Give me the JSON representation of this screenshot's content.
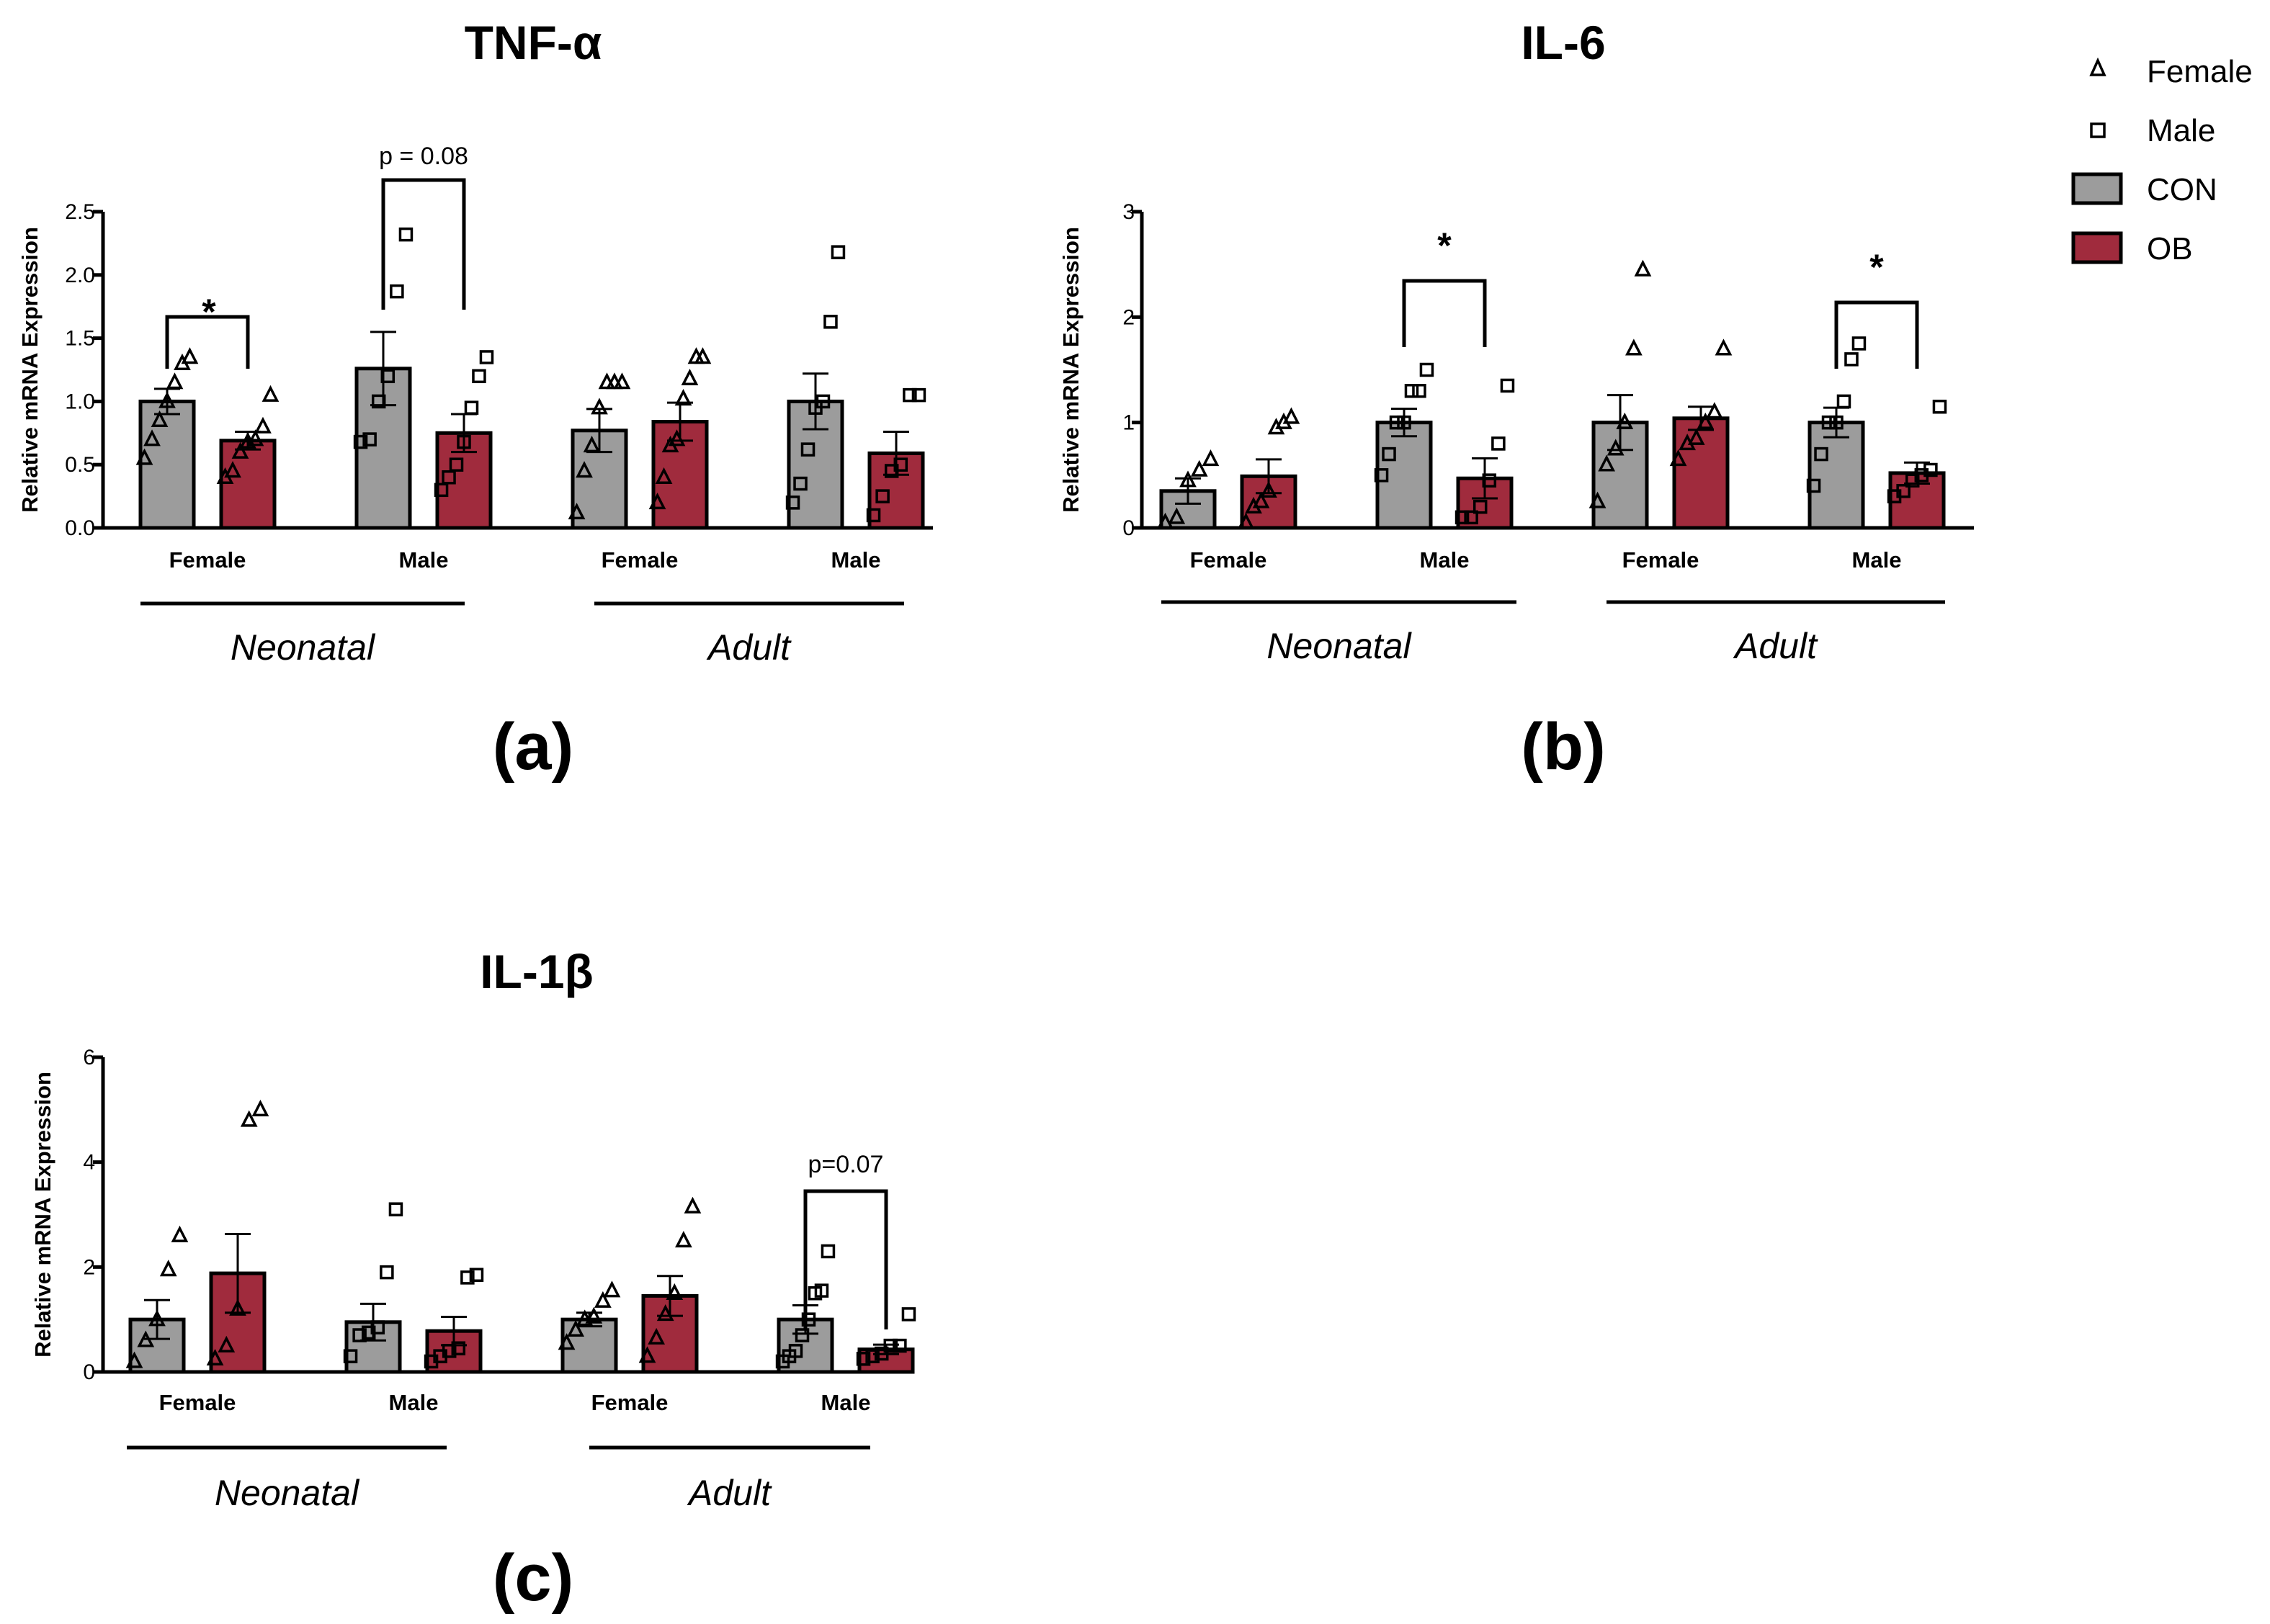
{
  "figure": {
    "legend": [
      {
        "label": "Female",
        "marker": "triangle-open-icon"
      },
      {
        "label": "Male",
        "marker": "square-open-icon"
      },
      {
        "label": "CON",
        "marker": "gray-box-icon"
      },
      {
        "label": "OB",
        "marker": "red-box-icon"
      }
    ],
    "colors": {
      "CON": "#9c9c9c",
      "OB": "#a02b3d"
    }
  },
  "chart_data": [
    {
      "type": "bar",
      "panel": "(a)",
      "title": "TNF-α",
      "ylabel": "Relative mRNA Expression",
      "ylim": [
        0,
        2.5
      ],
      "yticks": [
        "0.0",
        "0.5",
        "1.0",
        "1.5",
        "2.0",
        "2.5"
      ],
      "ytick_values": [
        0,
        0.5,
        1.0,
        1.5,
        2.0,
        2.5
      ],
      "categories": [
        "Female",
        "Male",
        "Female",
        "Male"
      ],
      "age_groups": [
        {
          "label": "Neonatal",
          "span": [
            0,
            1
          ]
        },
        {
          "label": "Adult",
          "span": [
            2,
            3
          ]
        }
      ],
      "series": [
        {
          "name": "CON",
          "values": [
            1.0,
            1.26,
            0.77,
            1.0
          ],
          "sem": [
            0.1,
            0.29,
            0.17,
            0.22
          ],
          "points": [
            [
              0.55,
              0.7,
              0.85,
              1.0,
              1.15,
              1.3,
              1.35
            ],
            [
              0.68,
              0.7,
              1.0,
              1.2,
              1.87,
              2.32
            ],
            [
              0.12,
              0.45,
              0.65,
              0.95,
              1.15,
              1.15,
              1.15
            ],
            [
              0.2,
              0.35,
              0.62,
              0.95,
              1.0,
              1.63,
              2.18
            ]
          ]
        },
        {
          "name": "OB",
          "values": [
            0.69,
            0.75,
            0.84,
            0.59
          ],
          "sem": [
            0.07,
            0.15,
            0.15,
            0.17
          ],
          "points": [
            [
              0.4,
              0.45,
              0.6,
              0.68,
              0.7,
              0.8,
              1.05
            ],
            [
              0.3,
              0.4,
              0.5,
              0.68,
              0.95,
              1.2,
              1.35
            ],
            [
              0.2,
              0.4,
              0.65,
              0.7,
              1.02,
              1.18,
              1.35,
              1.35
            ],
            [
              0.1,
              0.25,
              0.45,
              0.5,
              1.05,
              1.05
            ]
          ]
        }
      ],
      "annotations": [
        {
          "text": "*",
          "from": 0,
          "to": 0
        },
        {
          "text": "p = 0.08",
          "from": 1,
          "to": 1
        }
      ]
    },
    {
      "type": "bar",
      "panel": "(b)",
      "title": "IL-6",
      "ylabel": "Relative mRNA Expression",
      "ylim": [
        0,
        3
      ],
      "yticks": [
        "0",
        "1",
        "2",
        "3"
      ],
      "ytick_values": [
        0,
        1,
        2,
        3
      ],
      "categories": [
        "Female",
        "Male",
        "Female",
        "Male"
      ],
      "age_groups": [
        {
          "label": "Neonatal",
          "span": [
            0,
            1
          ]
        },
        {
          "label": "Adult",
          "span": [
            2,
            3
          ]
        }
      ],
      "series": [
        {
          "name": "CON",
          "values": [
            0.35,
            1.0,
            1.0,
            1.0
          ],
          "sem": [
            0.12,
            0.13,
            0.26,
            0.14
          ],
          "points": [
            [
              0.05,
              0.1,
              0.45,
              0.55,
              0.65
            ],
            [
              0.5,
              0.7,
              1.0,
              1.0,
              1.3,
              1.3,
              1.5
            ],
            [
              0.25,
              0.6,
              0.75,
              1.0,
              1.7,
              2.45
            ],
            [
              0.4,
              0.7,
              1.0,
              1.0,
              1.2,
              1.6,
              1.75
            ]
          ]
        },
        {
          "name": "OB",
          "values": [
            0.49,
            0.47,
            1.04,
            0.52
          ],
          "sem": [
            0.16,
            0.19,
            0.11,
            0.1
          ],
          "points": [
            [
              0.05,
              0.2,
              0.25,
              0.35,
              0.95,
              1.0,
              1.05
            ],
            [
              0.1,
              0.1,
              0.2,
              0.45,
              0.8,
              1.35
            ],
            [
              0.65,
              0.8,
              0.85,
              1.0,
              1.1,
              1.7
            ],
            [
              0.3,
              0.35,
              0.45,
              0.5,
              0.55,
              1.15
            ]
          ]
        }
      ],
      "annotations": [
        {
          "text": "*",
          "from": 1,
          "to": 1
        },
        {
          "text": "*",
          "from": 3,
          "to": 3
        }
      ]
    },
    {
      "type": "bar",
      "panel": "(c)",
      "title": "IL-1β",
      "ylabel": "Relative mRNA Expression",
      "ylim": [
        0,
        6
      ],
      "yticks": [
        "0",
        "2",
        "4",
        "6"
      ],
      "ytick_values": [
        0,
        2,
        4,
        6
      ],
      "categories": [
        "Female",
        "Male",
        "Female",
        "Male"
      ],
      "age_groups": [
        {
          "label": "Neonatal",
          "span": [
            0,
            1
          ]
        },
        {
          "label": "Adult",
          "span": [
            2,
            3
          ]
        }
      ],
      "series": [
        {
          "name": "CON",
          "values": [
            1.0,
            0.95,
            1.0,
            1.0
          ],
          "sem": [
            0.37,
            0.35,
            0.13,
            0.27
          ],
          "points": [
            [
              0.2,
              0.6,
              1.0,
              1.95,
              2.6
            ],
            [
              0.3,
              0.7,
              0.75,
              0.85,
              1.9,
              3.1
            ],
            [
              0.55,
              0.8,
              1.0,
              1.05,
              1.35,
              1.55
            ],
            [
              0.2,
              0.3,
              0.4,
              0.7,
              1.0,
              1.5,
              1.55,
              2.3
            ]
          ]
        },
        {
          "name": "OB",
          "values": [
            1.88,
            0.78,
            1.45,
            0.43
          ],
          "sem": [
            0.75,
            0.27,
            0.38,
            0.09
          ],
          "points": [
            [
              0.25,
              0.5,
              1.2,
              4.8,
              5.0
            ],
            [
              0.2,
              0.3,
              0.4,
              0.45,
              1.8,
              1.85
            ],
            [
              0.3,
              0.65,
              1.1,
              1.5,
              2.5,
              3.15
            ],
            [
              0.25,
              0.3,
              0.35,
              0.5,
              0.5,
              1.1
            ]
          ]
        }
      ],
      "annotations": [
        {
          "text": "p=0.07",
          "from": 3,
          "to": 3
        }
      ]
    }
  ]
}
